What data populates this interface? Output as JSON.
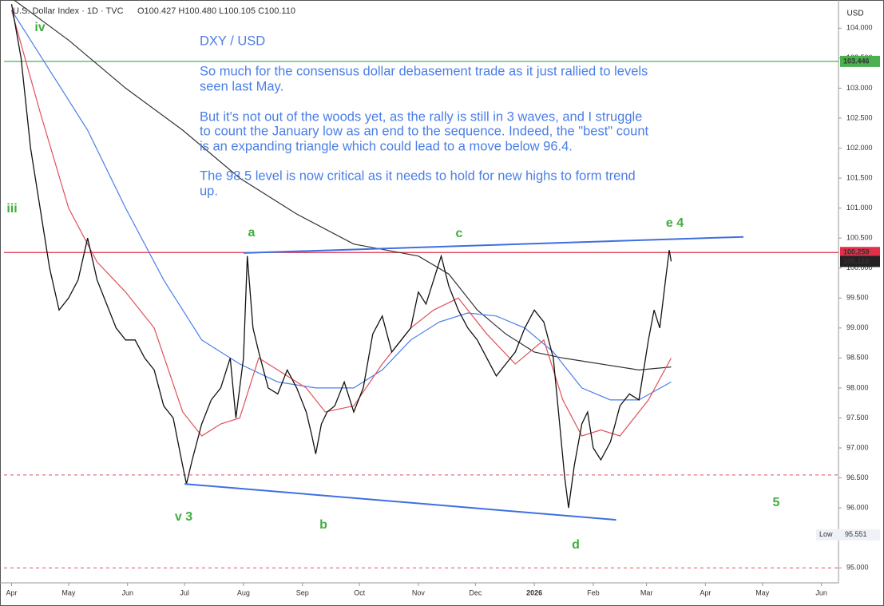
{
  "chart_data": {
    "type": "line",
    "header": "U.S. Dollar Index · 1D · TVC",
    "ohlc": "O100.427  H100.480  L100.105  C100.110",
    "currency": "USD",
    "notes": [
      "DXY / USD",
      "So much for the consensus dollar debasement trade as it just rallied to levels",
      "seen last May.",
      "But it's not out of the woods yet, as the rally is still in 3 waves, and I struggle",
      "to count the January low as an end to the sequence. Indeed, the \"best\" count",
      "is an expanding triangle which could lead to a move below 96.4.",
      "The 98.5 level is now critical as it needs to hold for new highs to form trend",
      "up."
    ],
    "waves": [
      "iv",
      "iii",
      "a",
      "c",
      "e 4",
      "v 3",
      "b",
      "d",
      "5"
    ],
    "xlim": [
      -4,
      435
    ],
    "xticks": [
      {
        "value": 0,
        "label": "Apr"
      },
      {
        "value": 30,
        "label": "May"
      },
      {
        "value": 61,
        "label": "Jun"
      },
      {
        "value": 91,
        "label": "Jul"
      },
      {
        "value": 122,
        "label": "Aug"
      },
      {
        "value": 153,
        "label": "Sep"
      },
      {
        "value": 183,
        "label": "Oct"
      },
      {
        "value": 214,
        "label": "Nov"
      },
      {
        "value": 244,
        "label": "Dec"
      },
      {
        "value": 275,
        "label": "2026"
      },
      {
        "value": 306,
        "label": "Feb"
      },
      {
        "value": 334,
        "label": "Mar"
      },
      {
        "value": 365,
        "label": "Apr"
      },
      {
        "value": 395,
        "label": "May"
      },
      {
        "value": 426,
        "label": "Jun"
      }
    ],
    "ylim": [
      94.75,
      104.47
    ],
    "yticks": [
      {
        "value": 95,
        "label": "95.000"
      },
      {
        "value": 95.5,
        "label": "95.500"
      },
      {
        "value": 96,
        "label": "96.000"
      },
      {
        "value": 96.5,
        "label": "96.500"
      },
      {
        "value": 97,
        "label": "97.000"
      },
      {
        "value": 97.5,
        "label": "97.500"
      },
      {
        "value": 98,
        "label": "98.000"
      },
      {
        "value": 98.5,
        "label": "98.500"
      },
      {
        "value": 99,
        "label": "99.000"
      },
      {
        "value": 99.5,
        "label": "99.500"
      },
      {
        "value": 100,
        "label": "100.000"
      },
      {
        "value": 100.5,
        "label": "100.500"
      },
      {
        "value": 101,
        "label": "101.000"
      },
      {
        "value": 101.5,
        "label": "101.500"
      },
      {
        "value": 102,
        "label": "102.000"
      },
      {
        "value": 102.5,
        "label": "102.500"
      },
      {
        "value": 103,
        "label": "103.000"
      },
      {
        "value": 103.5,
        "label": "103.500"
      },
      {
        "value": 104,
        "label": "104.000"
      }
    ],
    "series": [
      {
        "color": "#111111",
        "width": 1.3,
        "x": [
          0,
          5,
          10,
          15,
          20,
          25,
          30,
          35,
          40,
          45,
          50,
          55,
          60,
          65,
          70,
          75,
          80,
          85,
          90,
          92,
          95,
          100,
          105,
          110,
          115,
          118,
          122,
          124,
          127,
          130,
          135,
          140,
          145,
          150,
          155,
          158,
          160,
          163,
          166,
          170,
          175,
          180,
          185,
          190,
          195,
          200,
          205,
          210,
          214,
          218,
          222,
          226,
          230,
          235,
          240,
          245,
          250,
          255,
          260,
          265,
          270,
          275,
          280,
          285,
          288,
          291,
          293,
          296,
          300,
          303,
          306,
          310,
          315,
          320,
          325,
          330,
          335,
          338,
          341,
          344,
          346,
          347
        ],
        "values": [
          104.4,
          103.5,
          102.0,
          101.0,
          100.0,
          99.3,
          99.5,
          99.8,
          100.5,
          99.8,
          99.4,
          99.0,
          98.8,
          98.8,
          98.5,
          98.3,
          97.7,
          97.5,
          96.7,
          96.4,
          96.8,
          97.4,
          97.8,
          98.0,
          98.5,
          97.5,
          98.5,
          100.2,
          99.0,
          98.6,
          98.0,
          97.9,
          98.3,
          98.0,
          97.6,
          97.2,
          96.9,
          97.4,
          97.6,
          97.7,
          98.1,
          97.6,
          98.0,
          98.9,
          99.2,
          98.6,
          98.8,
          99.0,
          99.6,
          99.4,
          99.8,
          100.2,
          99.7,
          99.3,
          99.0,
          98.8,
          98.5,
          98.2,
          98.4,
          98.6,
          99.0,
          99.3,
          99.1,
          98.5,
          97.5,
          96.5,
          96.0,
          96.7,
          97.4,
          97.6,
          97.0,
          96.8,
          97.1,
          97.7,
          97.9,
          97.8,
          98.8,
          99.3,
          99.0,
          99.8,
          100.3,
          100.11
        ]
      },
      {
        "color": "#333333",
        "width": 1.2,
        "x": [
          0,
          30,
          60,
          90,
          120,
          150,
          180,
          214,
          230,
          245,
          260,
          275,
          290,
          310,
          330,
          347
        ],
        "values": [
          104.5,
          103.8,
          103.0,
          102.3,
          101.5,
          100.9,
          100.4,
          100.2,
          99.9,
          99.3,
          98.9,
          98.6,
          98.5,
          98.4,
          98.3,
          98.35
        ]
      },
      {
        "color": "#4a7ee8",
        "width": 1.2,
        "x": [
          0,
          20,
          40,
          60,
          80,
          100,
          120,
          140,
          160,
          180,
          195,
          210,
          225,
          240,
          255,
          270,
          285,
          300,
          315,
          330,
          347
        ],
        "values": [
          104.3,
          103.3,
          102.3,
          101.0,
          99.8,
          98.8,
          98.4,
          98.1,
          98.0,
          98.0,
          98.3,
          98.8,
          99.1,
          99.25,
          99.2,
          99.0,
          98.6,
          98.0,
          97.8,
          97.8,
          98.1
        ]
      },
      {
        "color": "#e0505a",
        "width": 1.2,
        "x": [
          0,
          15,
          30,
          45,
          60,
          75,
          90,
          100,
          110,
          120,
          130,
          140,
          155,
          165,
          180,
          195,
          210,
          222,
          235,
          250,
          265,
          280,
          290,
          300,
          310,
          320,
          335,
          347
        ],
        "values": [
          104.3,
          102.6,
          101.0,
          100.1,
          99.6,
          99.0,
          97.6,
          97.2,
          97.4,
          97.5,
          98.5,
          98.3,
          98.0,
          97.6,
          97.7,
          98.4,
          99.0,
          99.3,
          99.5,
          98.9,
          98.4,
          98.8,
          97.8,
          97.2,
          97.3,
          97.2,
          97.8,
          98.5
        ]
      }
    ],
    "trendlines": [
      {
        "color": "#3f6fe0",
        "x": [
          122,
          385
        ],
        "values": [
          100.25,
          100.52
        ]
      },
      {
        "color": "#3f6fe0",
        "x": [
          91,
          318
        ],
        "values": [
          96.4,
          95.8
        ]
      }
    ],
    "levels": [
      {
        "value": 103.446,
        "label": "103.446",
        "color": "#4caf50",
        "dashed": false
      },
      {
        "value": 100.259,
        "label": "100.259",
        "color": "#e0304a",
        "dashed": false
      },
      {
        "value": 96.55,
        "color": "#e05060",
        "dashed": true
      },
      {
        "value": 95.0,
        "color": "#e05060",
        "dashed": true
      }
    ],
    "last_price": {
      "value": 100.11,
      "label": "100.110"
    },
    "low": {
      "name": "Low",
      "value": 95.551,
      "label": "95.551"
    }
  }
}
